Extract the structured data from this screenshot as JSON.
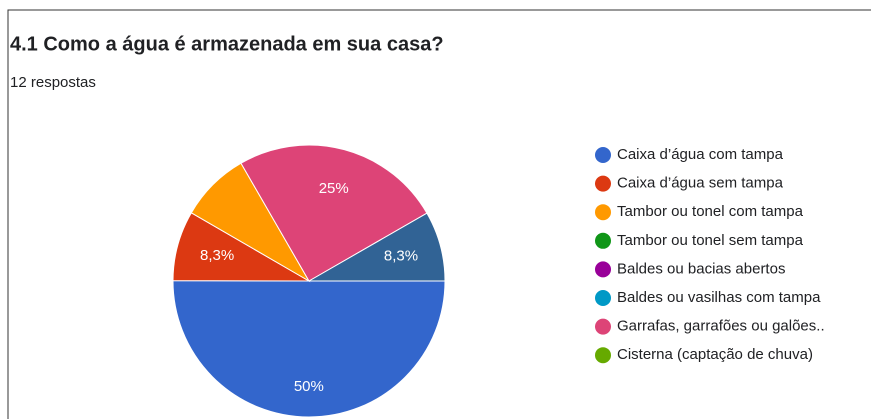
{
  "chart_data": {
    "type": "pie",
    "title": "4.1 Como a água é armazenada em sua casa?",
    "subtitle": "12 respostas",
    "categories": [
      "Caixa d’água com tampa",
      "Caixa d’água sem tampa",
      "Tambor ou tonel com tampa",
      "Tambor ou tonel sem tampa",
      "Baldes ou bacias abertos",
      "Baldes ou vasilhas com tampa",
      "Garrafas, garrafões ou galões..",
      "Cisterna (captação de chuva)",
      null
    ],
    "values": [
      50,
      8.3,
      8.3,
      0,
      0,
      0,
      25,
      0,
      8.3
    ],
    "value_labels": [
      "50%",
      "8,3%",
      null,
      null,
      null,
      null,
      "25%",
      null,
      "8,3%"
    ],
    "colors": [
      "#3366cc",
      "#dc3912",
      "#ff9900",
      "#109618",
      "#990099",
      "#0099c6",
      "#dd4477",
      "#66aa00",
      "#316395"
    ],
    "legend": "right"
  }
}
